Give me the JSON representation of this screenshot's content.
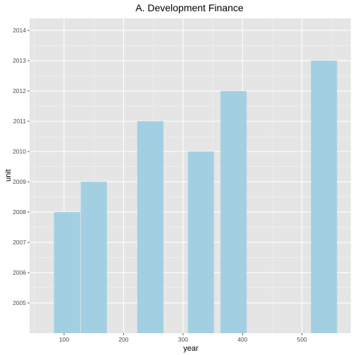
{
  "chart_data": {
    "type": "bar",
    "title": "A. Development Finance",
    "xlabel": "year",
    "ylabel": "unit",
    "x": [
      105,
      150,
      245,
      330,
      385,
      537
    ],
    "values": [
      2008,
      2009,
      2011,
      2010,
      2012,
      2013
    ],
    "bar_width": 44,
    "xlim": [
      42,
      582
    ],
    "ylim": [
      2004,
      2014.4
    ],
    "x_ticks": [
      100,
      200,
      300,
      400,
      500
    ],
    "y_ticks": [
      2005,
      2006,
      2007,
      2008,
      2009,
      2010,
      2011,
      2012,
      2013,
      2014
    ],
    "grid": true,
    "legend": "none",
    "colors": {
      "panel_bg": "#e5e5e5",
      "grid_major": "#ffffff",
      "bar_fill": "#a2d0e2",
      "tick_mark": "#333333"
    }
  }
}
